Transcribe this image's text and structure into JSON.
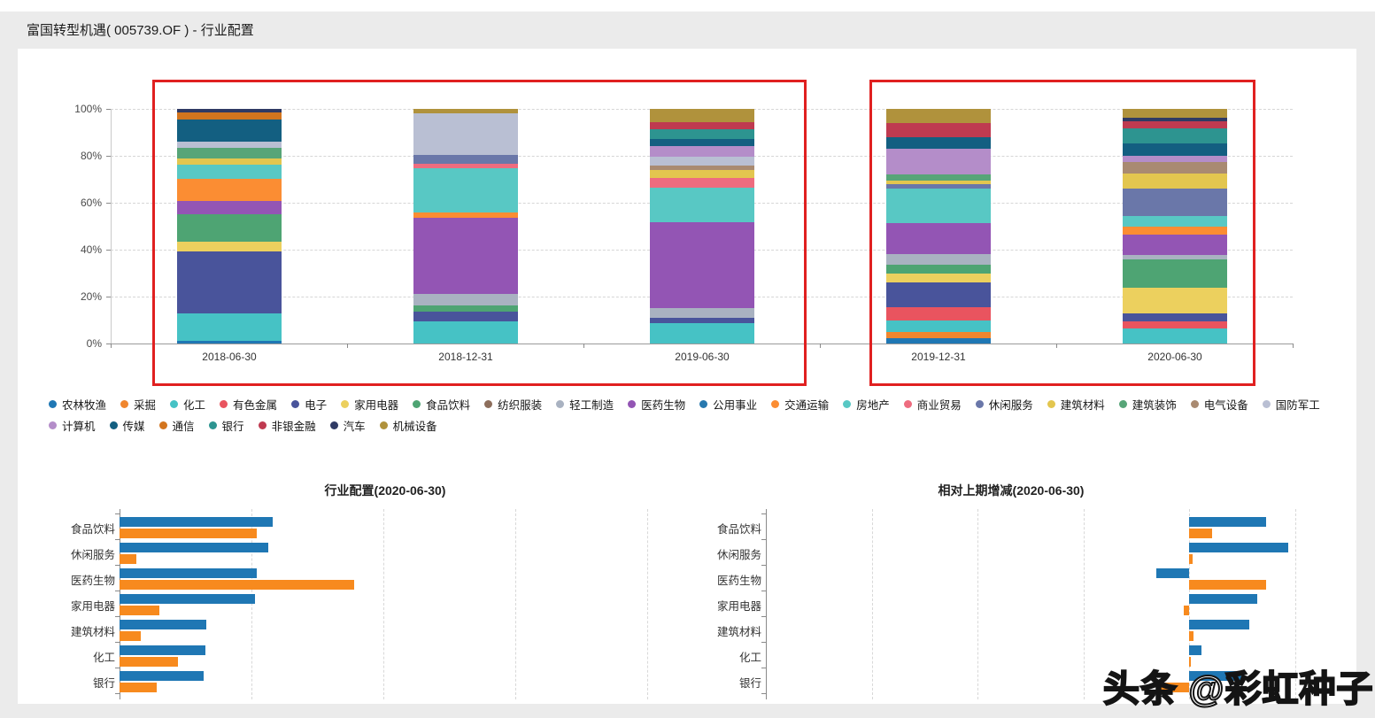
{
  "page": {
    "title": "富国转型机遇( 005739.OF ) - 行业配置",
    "watermark": "头条 @彩虹种子",
    "background": "#ebebeb",
    "card_background": "#ffffff",
    "highlight_color": "#e02020"
  },
  "palette": {
    "农林牧渔": "#1f77b4",
    "采掘": "#f0862e",
    "化工": "#46c2c5",
    "有色金属": "#e9545f",
    "电子": "#49549b",
    "家用电器": "#ecd05e",
    "食品饮料": "#4ea473",
    "纺织服装": "#8d6e5c",
    "轻工制造": "#a9b2c1",
    "医药生物": "#9355b4",
    "公用事业": "#2778ae",
    "交通运输": "#fb8d33",
    "房地产": "#58c8c4",
    "商业贸易": "#ee6c7f",
    "休闲服务": "#6a77a9",
    "建筑材料": "#e3c64f",
    "建筑装饰": "#57a578",
    "电气设备": "#a98a71",
    "国防军工": "#b9bfd3",
    "计算机": "#b48dc9",
    "传媒": "#135f81",
    "通信": "#d3751e",
    "银行": "#2d9490",
    "非银金融": "#bf3a50",
    "汽车": "#2f3a64",
    "机械设备": "#b0923c"
  },
  "legend_rows": [
    [
      "农林牧渔",
      "采掘",
      "化工",
      "有色金属",
      "电子",
      "家用电器",
      "食品饮料",
      "纺织服装",
      "轻工制造",
      "医药生物",
      "公用事业",
      "交通运输",
      "房地产",
      "商业贸易",
      "休闲服务",
      "建筑材料",
      "建筑装饰",
      "电气设备",
      "国防军工"
    ],
    [
      "计算机",
      "传媒",
      "通信",
      "银行",
      "非银金融",
      "汽车",
      "机械设备"
    ]
  ],
  "annotations": {
    "boxes": [
      {
        "categories": [
          "2018-06-30",
          "2018-12-31",
          "2019-06-30"
        ]
      },
      {
        "categories": [
          "2019-12-31",
          "2020-06-30"
        ]
      }
    ]
  },
  "chart_data": [
    {
      "id": "industry-allocation-stacked",
      "type": "bar",
      "stacked": true,
      "orientation": "vertical",
      "unit": "%",
      "title": "",
      "categories": [
        "2018-06-30",
        "2018-12-31",
        "2019-06-30",
        "2019-12-31",
        "2020-06-30"
      ],
      "ylim": [
        0,
        100
      ],
      "yticks": [
        "0%",
        "20%",
        "40%",
        "60%",
        "80%",
        "100%"
      ],
      "grid": true,
      "segments_bottom_to_top": {
        "2018-06-30": [
          [
            "农林牧渔",
            1.2
          ],
          [
            "化工",
            11.7
          ],
          [
            "电子",
            26.4
          ],
          [
            "家用电器",
            4.2
          ],
          [
            "食品饮料",
            11.7
          ],
          [
            "医药生物",
            5.7
          ],
          [
            "交通运输",
            9.4
          ],
          [
            "房地产",
            6.0
          ],
          [
            "建筑材料",
            2.6
          ],
          [
            "建筑装饰",
            4.5
          ],
          [
            "国防军工",
            2.6
          ],
          [
            "传媒",
            9.4
          ],
          [
            "通信",
            3.0
          ],
          [
            "汽车",
            1.6
          ]
        ],
        "2018-12-31": [
          [
            "化工",
            9.4
          ],
          [
            "电子",
            4.2
          ],
          [
            "食品饮料",
            2.6
          ],
          [
            "轻工制造",
            4.9
          ],
          [
            "医药生物",
            32.5
          ],
          [
            "交通运输",
            2.3
          ],
          [
            "房地产",
            18.9
          ],
          [
            "商业贸易",
            1.9
          ],
          [
            "休闲服务",
            3.8
          ],
          [
            "国防军工",
            17.6
          ],
          [
            "机械设备",
            1.9
          ]
        ],
        "2019-06-30": [
          [
            "化工",
            8.7
          ],
          [
            "电子",
            2.3
          ],
          [
            "轻工制造",
            4.2
          ],
          [
            "医药生物",
            36.4
          ],
          [
            "房地产",
            14.7
          ],
          [
            "商业贸易",
            4.2
          ],
          [
            "建筑材料",
            3.4
          ],
          [
            "电气设备",
            1.9
          ],
          [
            "国防军工",
            3.8
          ],
          [
            "计算机",
            4.5
          ],
          [
            "传媒",
            3.0
          ],
          [
            "银行",
            4.2
          ],
          [
            "非银金融",
            3.0
          ],
          [
            "机械设备",
            5.7
          ]
        ],
        "2019-12-31": [
          [
            "农林牧渔",
            2.3
          ],
          [
            "采掘",
            2.6
          ],
          [
            "化工",
            4.9
          ],
          [
            "有色金属",
            5.7
          ],
          [
            "电子",
            10.5
          ],
          [
            "家用电器",
            3.8
          ],
          [
            "食品饮料",
            3.8
          ],
          [
            "轻工制造",
            4.5
          ],
          [
            "医药生物",
            13.2
          ],
          [
            "房地产",
            14.7
          ],
          [
            "休闲服务",
            1.9
          ],
          [
            "建筑材料",
            1.5
          ],
          [
            "建筑装饰",
            2.5
          ],
          [
            "计算机",
            11.3
          ],
          [
            "传媒",
            4.9
          ],
          [
            "非银金融",
            5.7
          ],
          [
            "机械设备",
            6.2
          ]
        ],
        "2020-06-30": [
          [
            "化工",
            6.4
          ],
          [
            "有色金属",
            3.0
          ],
          [
            "电子",
            3.4
          ],
          [
            "家用电器",
            11.0
          ],
          [
            "食品饮料",
            12.0
          ],
          [
            "轻工制造",
            1.9
          ],
          [
            "医药生物",
            8.7
          ],
          [
            "交通运输",
            3.4
          ],
          [
            "房地产",
            4.5
          ],
          [
            "休闲服务",
            11.7
          ],
          [
            "建筑材料",
            6.4
          ],
          [
            "电气设备",
            4.9
          ],
          [
            "计算机",
            2.6
          ],
          [
            "传媒",
            5.3
          ],
          [
            "银行",
            6.4
          ],
          [
            "非银金融",
            3.0
          ],
          [
            "汽车",
            1.6
          ],
          [
            "机械设备",
            3.8
          ]
        ]
      }
    },
    {
      "id": "allocation-latest",
      "type": "bar",
      "orientation": "horizontal",
      "title": "行业配置(2020-06-30)",
      "categories": [
        "食品饮料",
        "休闲服务",
        "医药生物",
        "家用电器",
        "建筑材料",
        "化工",
        "银行"
      ],
      "series": [
        {
          "name": "series1",
          "color": "#1f77b4",
          "values": [
            11.6,
            11.3,
            10.4,
            10.3,
            6.6,
            6.5,
            6.4
          ]
        },
        {
          "name": "series2",
          "color": "#f78a1e",
          "values": [
            10.4,
            1.3,
            17.8,
            3.0,
            1.6,
            4.4,
            2.8
          ]
        }
      ],
      "xlim": [
        0,
        44
      ],
      "gridlines": [
        10,
        20,
        30,
        40
      ],
      "grid": true
    },
    {
      "id": "change-vs-previous",
      "type": "bar",
      "orientation": "horizontal",
      "title": "相对上期增减(2020-06-30)",
      "categories": [
        "食品饮料",
        "休闲服务",
        "医药生物",
        "家用电器",
        "建筑材料",
        "化工",
        "银行"
      ],
      "series": [
        {
          "name": "series1",
          "color": "#1f77b4",
          "values": [
            1.45,
            1.87,
            -0.62,
            1.29,
            1.13,
            0.24,
            0.99
          ]
        },
        {
          "name": "series2",
          "color": "#f78a1e",
          "values": [
            0.44,
            0.07,
            1.45,
            -0.1,
            0.08,
            0.03,
            -0.55
          ]
        }
      ],
      "xlim": [
        -8,
        2
      ],
      "gridlines": [
        -6,
        -4,
        -2,
        0,
        2
      ],
      "grid": true
    }
  ]
}
